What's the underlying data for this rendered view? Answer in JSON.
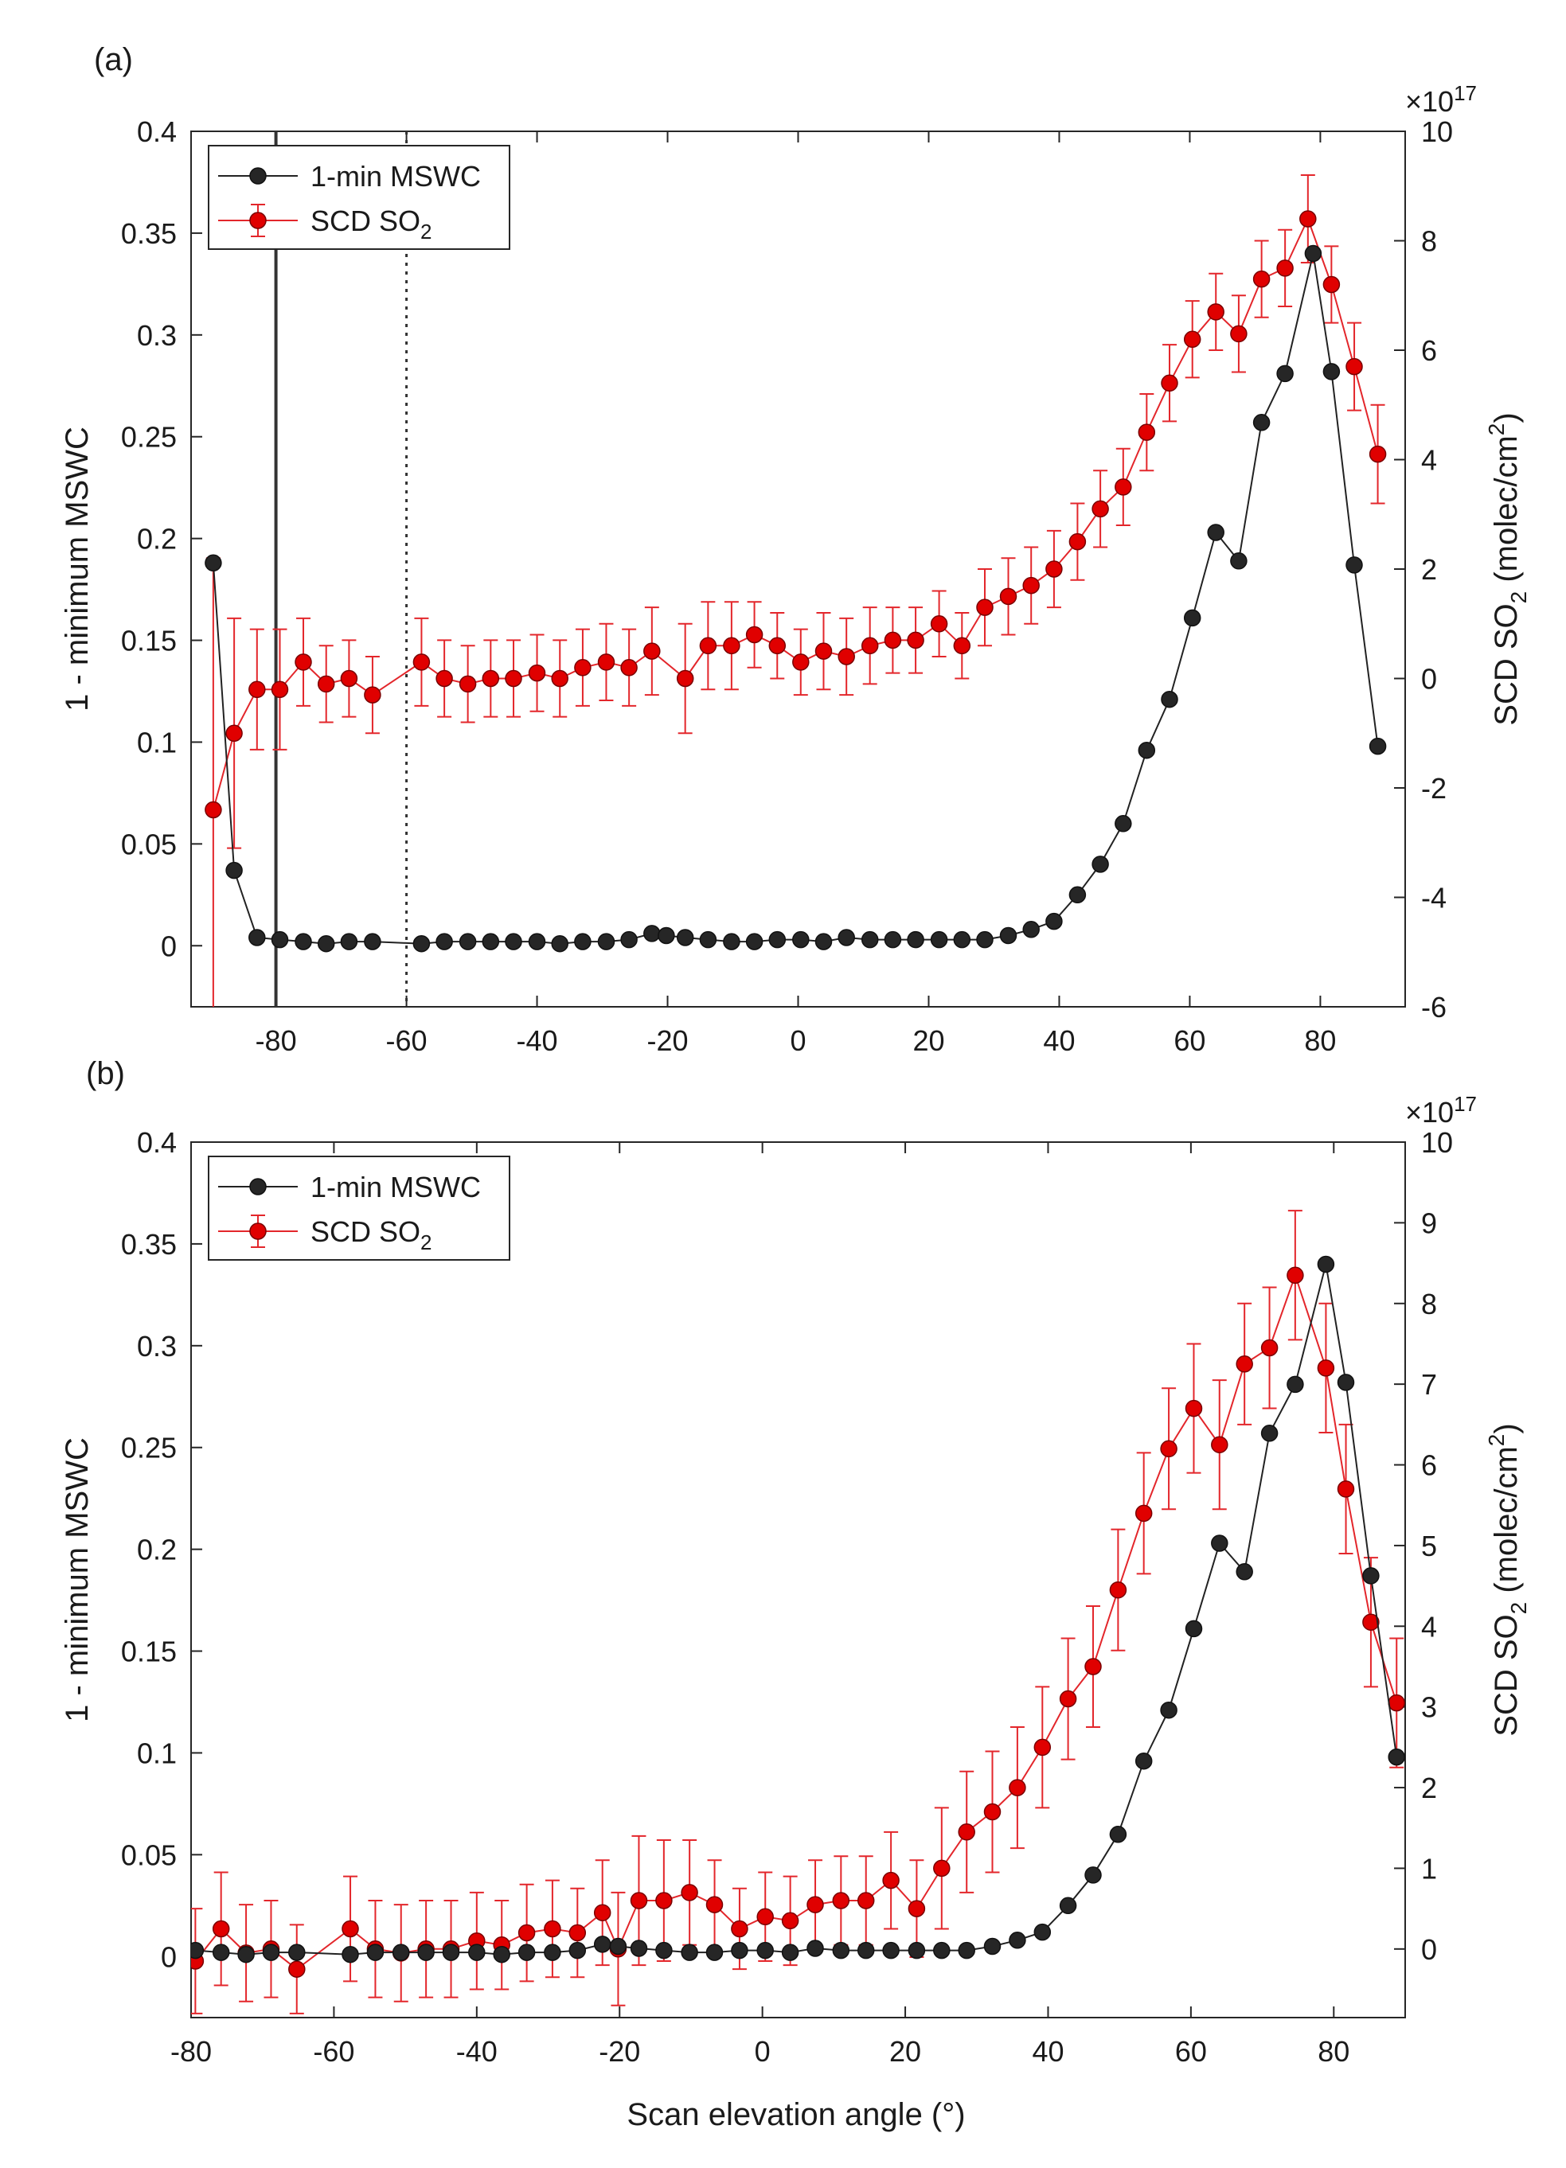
{
  "figure": {
    "xlabel": "Scan elevation angle (°)"
  },
  "chart_data": [
    {
      "panel_label": "(a)",
      "type": "line",
      "xlim": [
        -93,
        93
      ],
      "xticks": [
        -80,
        -60,
        -40,
        -20,
        0,
        20,
        40,
        60,
        80
      ],
      "ylim_left": [
        -0.03,
        0.4
      ],
      "yticks_left": [
        "0",
        "0.05",
        "0.1",
        "0.15",
        "0.2",
        "0.25",
        "0.3",
        "0.35",
        "0.4"
      ],
      "ylabel_left": "1 - minimum MSWC",
      "ylim_right": [
        -6,
        10
      ],
      "yticks_right": [
        "-6",
        "-4",
        "-2",
        "0",
        "2",
        "4",
        "6",
        "8",
        "10"
      ],
      "ylabel_right": "SCD SO",
      "ylabel_right_sub": "2",
      "ylabel_right_unit": " (molec/cm",
      "ylabel_right_sup": "2",
      "ylabel_right_close": ")",
      "exponent_label": "×10",
      "exponent_power": "17",
      "vlines": [
        {
          "x": -80,
          "style": "solid"
        },
        {
          "x": -60,
          "style": "dotted"
        }
      ],
      "legend": [
        {
          "label": "1-min MSWC",
          "sub": ""
        },
        {
          "label": "SCD SO",
          "sub": "2"
        }
      ],
      "series": [
        {
          "name": "1-min MSWC",
          "axis": "left",
          "color": "#222222",
          "x": [
            -89.6,
            -86.4,
            -82.9,
            -79.4,
            -75.8,
            -72.3,
            -68.8,
            -65.2,
            -57.7,
            -54.2,
            -50.6,
            -47.1,
            -43.6,
            -40.0,
            -36.5,
            -33.0,
            -29.4,
            -25.9,
            -22.4,
            -20.2,
            -17.3,
            -13.8,
            -10.2,
            -6.7,
            -3.2,
            0.4,
            3.9,
            7.4,
            11.0,
            14.5,
            18.0,
            21.6,
            25.1,
            28.6,
            32.2,
            35.7,
            39.2,
            42.8,
            46.3,
            49.8,
            53.4,
            56.9,
            60.4,
            64.0,
            67.5,
            71.0,
            74.6,
            78.9,
            81.7,
            85.2,
            88.8
          ],
          "values": [
            0.188,
            0.037,
            0.004,
            0.003,
            0.002,
            0.001,
            0.002,
            0.002,
            0.001,
            0.002,
            0.002,
            0.002,
            0.002,
            0.002,
            0.001,
            0.002,
            0.002,
            0.003,
            0.006,
            0.005,
            0.004,
            0.003,
            0.002,
            0.002,
            0.003,
            0.003,
            0.002,
            0.004,
            0.003,
            0.003,
            0.003,
            0.003,
            0.003,
            0.003,
            0.005,
            0.008,
            0.012,
            0.025,
            0.04,
            0.06,
            0.096,
            0.121,
            0.161,
            0.203,
            0.189,
            0.257,
            0.281,
            0.34,
            0.282,
            0.187,
            0.098
          ]
        },
        {
          "name": "SCD SO2",
          "axis": "right",
          "color": "#e3262b",
          "x": [
            -89.6,
            -86.4,
            -82.9,
            -79.4,
            -75.8,
            -72.3,
            -68.8,
            -65.2,
            -57.7,
            -54.2,
            -50.6,
            -47.1,
            -43.6,
            -40.0,
            -36.5,
            -33.0,
            -29.4,
            -25.9,
            -22.4,
            -17.3,
            -13.8,
            -10.2,
            -6.7,
            -3.2,
            0.4,
            3.9,
            7.4,
            11.0,
            14.5,
            18.0,
            21.6,
            25.1,
            28.6,
            32.2,
            35.7,
            39.2,
            42.8,
            46.3,
            49.8,
            53.4,
            56.9,
            60.4,
            64.0,
            67.5,
            71.0,
            74.6,
            78.1,
            81.7,
            85.2,
            88.8
          ],
          "values": [
            -2.4,
            -1.0,
            -0.2,
            -0.2,
            0.3,
            -0.1,
            0.0,
            -0.3,
            0.3,
            0.0,
            -0.1,
            0.0,
            0.0,
            0.1,
            0.0,
            0.2,
            0.3,
            0.2,
            0.5,
            0.0,
            0.6,
            0.6,
            0.8,
            0.6,
            0.3,
            0.5,
            0.4,
            0.6,
            0.7,
            0.7,
            1.0,
            0.6,
            1.3,
            1.5,
            1.7,
            2.0,
            2.5,
            3.1,
            3.5,
            4.5,
            5.4,
            6.2,
            6.7,
            6.3,
            7.3,
            7.5,
            8.4,
            7.2,
            5.7,
            4.1
          ],
          "errors": [
            4.6,
            2.1,
            1.1,
            1.1,
            0.8,
            0.7,
            0.7,
            0.7,
            0.8,
            0.7,
            0.7,
            0.7,
            0.7,
            0.7,
            0.7,
            0.7,
            0.7,
            0.7,
            0.8,
            1.0,
            0.8,
            0.8,
            0.6,
            0.6,
            0.6,
            0.7,
            0.7,
            0.7,
            0.6,
            0.6,
            0.6,
            0.6,
            0.7,
            0.7,
            0.7,
            0.7,
            0.7,
            0.7,
            0.7,
            0.7,
            0.7,
            0.7,
            0.7,
            0.7,
            0.7,
            0.7,
            0.8,
            0.7,
            0.8,
            0.9
          ]
        }
      ]
    },
    {
      "panel_label": "(b)",
      "type": "line",
      "xlim": [
        -80,
        90
      ],
      "xticks": [
        -80,
        -60,
        -40,
        -20,
        0,
        20,
        40,
        60,
        80
      ],
      "ylim_left": [
        -0.03,
        0.4
      ],
      "yticks_left": [
        "0",
        "0.05",
        "0.1",
        "0.15",
        "0.2",
        "0.25",
        "0.3",
        "0.35",
        "0.4"
      ],
      "ylabel_left": "1 - minimum MSWC",
      "ylim_right": [
        -0.85,
        10
      ],
      "yticks_right": [
        "0",
        "1",
        "2",
        "3",
        "4",
        "5",
        "6",
        "7",
        "8",
        "9",
        "10"
      ],
      "ylabel_right": "SCD SO",
      "ylabel_right_sub": "2",
      "ylabel_right_unit": " (molec/cm",
      "ylabel_right_sup": "2",
      "ylabel_right_close": ")",
      "exponent_label": "×10",
      "exponent_power": "17",
      "vlines": [],
      "legend": [
        {
          "label": "1-min MSWC",
          "sub": ""
        },
        {
          "label": "SCD SO",
          "sub": "2"
        }
      ],
      "series": [
        {
          "name": "1-min MSWC",
          "axis": "left",
          "color": "#222222",
          "x": [
            -79.4,
            -75.8,
            -72.3,
            -68.8,
            -65.2,
            -57.7,
            -54.2,
            -50.6,
            -47.1,
            -43.6,
            -40.0,
            -36.5,
            -33.0,
            -29.4,
            -25.9,
            -22.4,
            -20.2,
            -17.3,
            -13.8,
            -10.2,
            -6.7,
            -3.2,
            0.4,
            3.9,
            7.4,
            11.0,
            14.5,
            18.0,
            21.6,
            25.1,
            28.6,
            32.2,
            35.7,
            39.2,
            42.8,
            46.3,
            49.8,
            53.4,
            56.9,
            60.4,
            64.0,
            67.5,
            71.0,
            74.6,
            78.9,
            81.7,
            85.2,
            88.8
          ],
          "values": [
            0.003,
            0.002,
            0.001,
            0.002,
            0.002,
            0.001,
            0.002,
            0.002,
            0.002,
            0.002,
            0.002,
            0.001,
            0.002,
            0.002,
            0.003,
            0.006,
            0.005,
            0.004,
            0.003,
            0.002,
            0.002,
            0.003,
            0.003,
            0.002,
            0.004,
            0.003,
            0.003,
            0.003,
            0.003,
            0.003,
            0.003,
            0.005,
            0.008,
            0.012,
            0.025,
            0.04,
            0.06,
            0.096,
            0.121,
            0.161,
            0.203,
            0.189,
            0.257,
            0.281,
            0.34,
            0.282,
            0.187,
            0.098
          ]
        },
        {
          "name": "SCD SO2",
          "axis": "right",
          "color": "#e3262b",
          "x": [
            -79.4,
            -75.8,
            -72.3,
            -68.8,
            -65.2,
            -57.7,
            -54.2,
            -50.6,
            -47.1,
            -43.6,
            -40.0,
            -36.5,
            -33.0,
            -29.4,
            -25.9,
            -22.4,
            -20.2,
            -17.3,
            -13.8,
            -10.2,
            -6.7,
            -3.2,
            0.4,
            3.9,
            7.4,
            11.0,
            14.5,
            18.0,
            21.6,
            25.1,
            28.6,
            32.2,
            35.7,
            39.2,
            42.8,
            46.3,
            49.8,
            53.4,
            56.9,
            60.4,
            64.0,
            67.5,
            71.0,
            74.6,
            78.9,
            81.7,
            85.2,
            88.8
          ],
          "values": [
            -0.15,
            0.25,
            -0.05,
            0.0,
            -0.25,
            0.25,
            0.0,
            -0.05,
            0.0,
            0.0,
            0.1,
            0.05,
            0.2,
            0.25,
            0.2,
            0.45,
            0.0,
            0.6,
            0.6,
            0.7,
            0.55,
            0.25,
            0.4,
            0.35,
            0.55,
            0.6,
            0.6,
            0.85,
            0.5,
            1.0,
            1.45,
            1.7,
            2.0,
            2.5,
            3.1,
            3.5,
            4.45,
            5.4,
            6.2,
            6.7,
            6.25,
            7.25,
            7.45,
            8.35,
            7.2,
            5.7,
            4.05,
            3.05
          ],
          "errors": [
            0.65,
            0.7,
            0.6,
            0.6,
            0.55,
            0.65,
            0.6,
            0.6,
            0.6,
            0.6,
            0.6,
            0.55,
            0.6,
            0.6,
            0.55,
            0.65,
            0.7,
            0.8,
            0.75,
            0.65,
            0.55,
            0.5,
            0.55,
            0.55,
            0.55,
            0.55,
            0.55,
            0.6,
            0.6,
            0.75,
            0.75,
            0.75,
            0.75,
            0.75,
            0.75,
            0.75,
            0.75,
            0.75,
            0.75,
            0.8,
            0.8,
            0.75,
            0.75,
            0.8,
            0.8,
            0.8,
            0.8,
            0.8
          ]
        }
      ]
    }
  ]
}
